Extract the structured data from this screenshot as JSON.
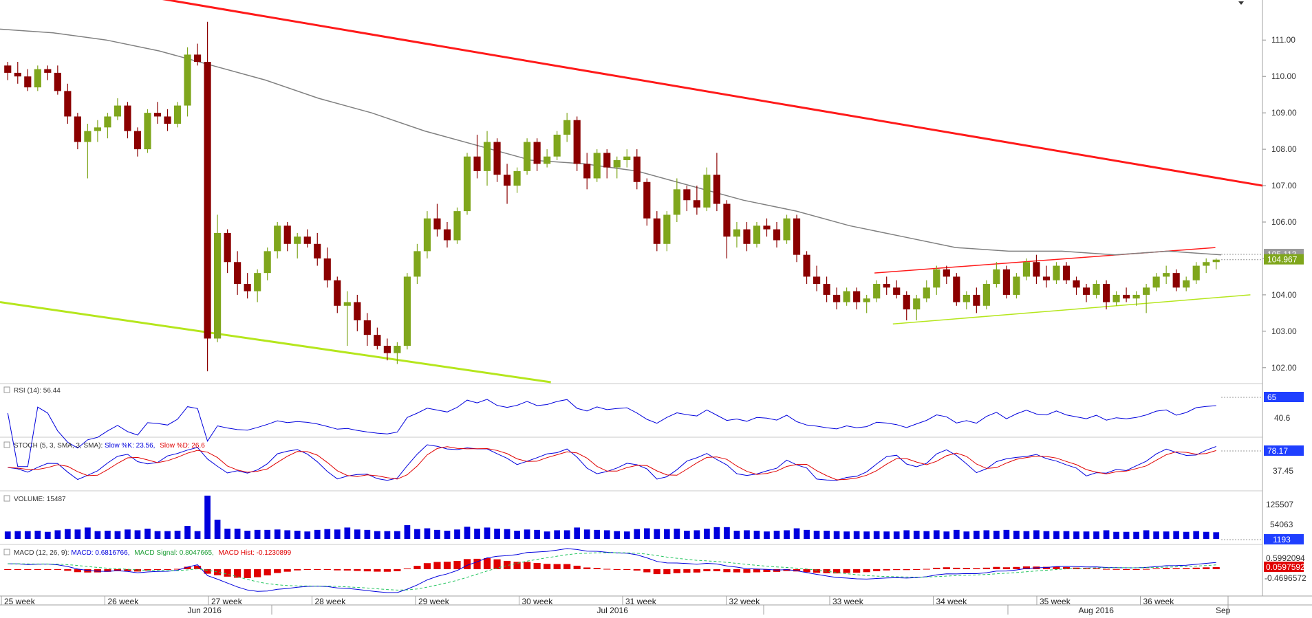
{
  "chart_data": {
    "type": "candlestick",
    "symbol_hint": "",
    "y_axis_ticks": [
      "111.00",
      "110.00",
      "109.00",
      "108.00",
      "107.00",
      "106.00",
      "105.00",
      "104.00",
      "103.00",
      "102.00"
    ],
    "ylim": [
      101.6,
      112.1
    ],
    "last_price_label": "104.967",
    "sma_label": "105.113",
    "x_week_labels": [
      "25 week",
      "26 week",
      "27 week",
      "28 week",
      "29 week",
      "30 week",
      "31 week",
      "32 week",
      "33 week",
      "34 week",
      "35 week",
      "36 week"
    ],
    "x_month_labels": [
      "Jun 2016",
      "Jul 2016",
      "Aug 2016",
      "Sep"
    ],
    "candles": [
      [
        110.3,
        110.4,
        109.9,
        110.1
      ],
      [
        110.1,
        110.4,
        109.8,
        110.0
      ],
      [
        110.0,
        110.2,
        109.6,
        109.7
      ],
      [
        109.7,
        110.3,
        109.6,
        110.2
      ],
      [
        110.2,
        110.3,
        109.9,
        110.1
      ],
      [
        110.1,
        110.3,
        109.5,
        109.6
      ],
      [
        109.6,
        109.8,
        108.7,
        108.9
      ],
      [
        108.9,
        109.0,
        108.0,
        108.2
      ],
      [
        108.2,
        108.7,
        107.2,
        108.5
      ],
      [
        108.5,
        108.8,
        108.2,
        108.6
      ],
      [
        108.6,
        109.0,
        108.3,
        108.9
      ],
      [
        108.9,
        109.4,
        108.8,
        109.2
      ],
      [
        109.2,
        109.3,
        108.3,
        108.5
      ],
      [
        108.5,
        108.6,
        107.8,
        108.0
      ],
      [
        108.0,
        109.1,
        107.9,
        109.0
      ],
      [
        109.0,
        109.3,
        108.7,
        108.9
      ],
      [
        108.9,
        109.1,
        108.5,
        108.7
      ],
      [
        108.7,
        109.3,
        108.6,
        109.2
      ],
      [
        109.2,
        110.8,
        108.9,
        110.6
      ],
      [
        110.6,
        110.9,
        110.3,
        110.4
      ],
      [
        110.4,
        111.5,
        101.9,
        102.8
      ],
      [
        102.8,
        106.2,
        102.7,
        105.7
      ],
      [
        105.7,
        105.8,
        104.6,
        104.9
      ],
      [
        104.9,
        105.2,
        104.0,
        104.3
      ],
      [
        104.3,
        104.6,
        103.9,
        104.1
      ],
      [
        104.1,
        104.7,
        103.8,
        104.6
      ],
      [
        104.6,
        105.3,
        104.4,
        105.2
      ],
      [
        105.2,
        106.0,
        105.0,
        105.9
      ],
      [
        105.9,
        106.0,
        105.2,
        105.4
      ],
      [
        105.4,
        105.7,
        105.0,
        105.6
      ],
      [
        105.6,
        105.8,
        105.3,
        105.4
      ],
      [
        105.4,
        105.7,
        104.8,
        105.0
      ],
      [
        105.0,
        105.3,
        104.2,
        104.4
      ],
      [
        104.4,
        104.5,
        103.5,
        103.7
      ],
      [
        103.7,
        104.1,
        102.6,
        103.8
      ],
      [
        103.8,
        104.0,
        103.0,
        103.3
      ],
      [
        103.3,
        103.5,
        102.6,
        102.9
      ],
      [
        102.9,
        103.1,
        102.5,
        102.6
      ],
      [
        102.6,
        102.8,
        102.2,
        102.4
      ],
      [
        102.4,
        102.7,
        102.1,
        102.6
      ],
      [
        102.6,
        104.6,
        102.5,
        104.5
      ],
      [
        104.5,
        105.4,
        104.3,
        105.2
      ],
      [
        105.2,
        106.3,
        105.0,
        106.1
      ],
      [
        106.1,
        106.5,
        105.6,
        105.8
      ],
      [
        105.8,
        106.0,
        105.3,
        105.5
      ],
      [
        105.5,
        106.4,
        105.4,
        106.3
      ],
      [
        106.3,
        107.9,
        106.2,
        107.8
      ],
      [
        107.8,
        108.4,
        107.2,
        107.4
      ],
      [
        107.4,
        108.5,
        107.0,
        108.2
      ],
      [
        108.2,
        108.3,
        107.1,
        107.3
      ],
      [
        107.3,
        107.6,
        106.5,
        107.0
      ],
      [
        107.0,
        107.5,
        106.8,
        107.4
      ],
      [
        107.4,
        108.3,
        107.3,
        108.2
      ],
      [
        108.2,
        108.3,
        107.4,
        107.6
      ],
      [
        107.6,
        108.0,
        107.5,
        107.8
      ],
      [
        107.8,
        108.5,
        107.7,
        108.4
      ],
      [
        108.4,
        109.0,
        108.2,
        108.8
      ],
      [
        108.8,
        108.9,
        107.4,
        107.6
      ],
      [
        107.6,
        107.9,
        106.9,
        107.2
      ],
      [
        107.2,
        108.0,
        107.1,
        107.9
      ],
      [
        107.9,
        108.0,
        107.2,
        107.5
      ],
      [
        107.5,
        107.8,
        107.2,
        107.7
      ],
      [
        107.7,
        108.0,
        107.5,
        107.8
      ],
      [
        107.8,
        108.0,
        106.9,
        107.1
      ],
      [
        107.1,
        107.2,
        105.9,
        106.1
      ],
      [
        106.1,
        106.3,
        105.2,
        105.4
      ],
      [
        105.4,
        106.3,
        105.2,
        106.2
      ],
      [
        106.2,
        107.2,
        106.0,
        106.9
      ],
      [
        106.9,
        107.0,
        106.3,
        106.6
      ],
      [
        106.6,
        107.0,
        106.2,
        106.4
      ],
      [
        106.4,
        107.5,
        106.3,
        107.3
      ],
      [
        107.3,
        107.9,
        106.3,
        106.5
      ],
      [
        106.5,
        106.6,
        105.0,
        105.6
      ],
      [
        105.6,
        106.0,
        105.3,
        105.8
      ],
      [
        105.8,
        106.0,
        105.2,
        105.4
      ],
      [
        105.4,
        106.0,
        105.3,
        105.9
      ],
      [
        105.9,
        106.1,
        105.6,
        105.8
      ],
      [
        105.8,
        106.0,
        105.3,
        105.5
      ],
      [
        105.5,
        106.2,
        105.4,
        106.1
      ],
      [
        106.1,
        106.2,
        104.9,
        105.1
      ],
      [
        105.1,
        105.2,
        104.3,
        104.5
      ],
      [
        104.5,
        104.8,
        104.1,
        104.3
      ],
      [
        104.3,
        104.5,
        103.8,
        104.0
      ],
      [
        104.0,
        104.2,
        103.6,
        103.8
      ],
      [
        103.8,
        104.2,
        103.7,
        104.1
      ],
      [
        104.1,
        104.2,
        103.6,
        103.8
      ],
      [
        103.8,
        104.0,
        103.5,
        103.9
      ],
      [
        103.9,
        104.4,
        103.8,
        104.3
      ],
      [
        104.3,
        104.5,
        104.0,
        104.2
      ],
      [
        104.2,
        104.4,
        103.9,
        104.0
      ],
      [
        104.0,
        104.1,
        103.3,
        103.6
      ],
      [
        103.6,
        104.0,
        103.3,
        103.9
      ],
      [
        103.9,
        104.4,
        103.8,
        104.2
      ],
      [
        104.2,
        104.8,
        104.0,
        104.7
      ],
      [
        104.7,
        104.8,
        104.3,
        104.5
      ],
      [
        104.5,
        104.6,
        103.7,
        103.8
      ],
      [
        103.8,
        104.1,
        103.6,
        104.0
      ],
      [
        104.0,
        104.2,
        103.5,
        103.7
      ],
      [
        103.7,
        104.4,
        103.6,
        104.3
      ],
      [
        104.3,
        104.9,
        104.2,
        104.7
      ],
      [
        104.7,
        104.8,
        103.9,
        104.0
      ],
      [
        104.0,
        104.6,
        103.9,
        104.5
      ],
      [
        104.5,
        105.0,
        104.4,
        104.9
      ],
      [
        104.9,
        105.1,
        104.3,
        104.5
      ],
      [
        104.5,
        104.8,
        104.2,
        104.4
      ],
      [
        104.4,
        104.9,
        104.3,
        104.8
      ],
      [
        104.8,
        104.9,
        104.3,
        104.4
      ],
      [
        104.4,
        104.5,
        104.0,
        104.2
      ],
      [
        104.2,
        104.3,
        103.8,
        104.0
      ],
      [
        104.0,
        104.4,
        103.9,
        104.3
      ],
      [
        104.3,
        104.4,
        103.6,
        103.8
      ],
      [
        103.8,
        104.1,
        103.7,
        104.0
      ],
      [
        104.0,
        104.2,
        103.8,
        103.9
      ],
      [
        103.9,
        104.1,
        103.7,
        104.0
      ],
      [
        104.0,
        104.3,
        103.5,
        104.2
      ],
      [
        104.2,
        104.6,
        104.1,
        104.5
      ],
      [
        104.5,
        104.8,
        104.3,
        104.6
      ],
      [
        104.6,
        104.7,
        104.1,
        104.2
      ],
      [
        104.2,
        104.5,
        104.1,
        104.4
      ],
      [
        104.4,
        104.9,
        104.3,
        104.8
      ],
      [
        104.8,
        105.0,
        104.6,
        104.9
      ],
      [
        104.9,
        105.0,
        104.7,
        104.967
      ]
    ],
    "sma200": [
      111.3,
      111.2,
      111.0,
      110.7,
      110.3,
      109.9,
      109.4,
      109.0,
      108.5,
      108.1,
      107.7,
      107.6,
      107.4,
      107.0,
      106.6,
      106.3,
      105.9,
      105.6,
      105.3,
      105.2,
      105.2,
      105.1,
      105.2,
      105.1
    ],
    "upper_trend_red": [
      [
        0,
        112.5
      ],
      [
        1,
        107.0
      ]
    ],
    "lower_trend_green": [
      [
        0,
        103.8
      ],
      [
        0.42,
        101.6
      ]
    ],
    "channel_upper": [
      [
        0.66,
        104.6
      ],
      [
        0.93,
        105.3
      ]
    ],
    "channel_lower": [
      [
        0.68,
        103.2
      ],
      [
        0.955,
        104.0
      ]
    ],
    "indicators": {
      "rsi": {
        "title": "RSI (14): 56.44",
        "ticks": [
          "65",
          "40.6"
        ],
        "current": "65",
        "ylim": [
          30,
          75
        ]
      },
      "stoch": {
        "title_prefix": "STOCH (5, 3, SMA, 3, SMA): ",
        "k_label": "Slow %K: 23.56,",
        "d_label": "Slow %D: 26.6",
        "ticks": [
          "78.17",
          "37.45"
        ],
        "current": "78.17"
      },
      "volume": {
        "title": "VOLUME: 15487",
        "ticks": [
          "125507",
          "54063"
        ],
        "current": "1193"
      },
      "macd": {
        "title_prefix": "MACD (12, 26, 9): ",
        "macd_label": "MACD: 0.6816766,",
        "signal_label": "MACD Signal: 0.8047665,",
        "hist_label": "MACD Hist: -0.1230899",
        "ticks": [
          "0.5992094",
          "-0.4696572"
        ],
        "current": "0.0597592"
      }
    },
    "colors": {
      "bull": "#7fa61c",
      "bear": "#8b0000",
      "sma": "#808080",
      "red_line": "#ff1a1a",
      "green_line": "#b5e61d",
      "blue": "#0000dd",
      "red": "#e00000",
      "green_signal": "#22c55e",
      "axis_label_bg": "#1f3fff",
      "price_label_bg": "#7fa61c"
    }
  }
}
